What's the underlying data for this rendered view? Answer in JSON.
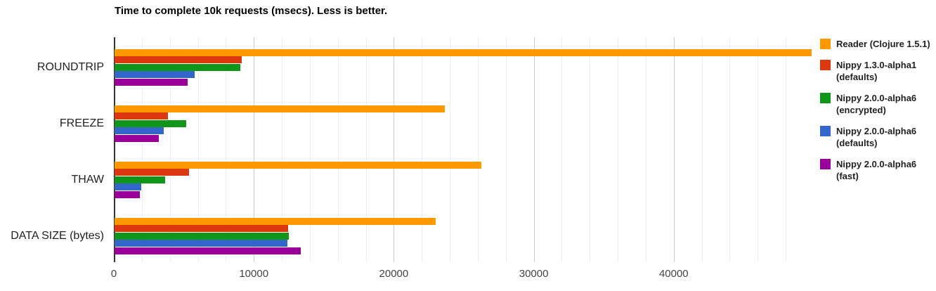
{
  "page": {
    "background": "#ffffff"
  },
  "chart_data": {
    "type": "bar",
    "orientation": "horizontal",
    "title": "Time to complete 10k requests (msecs). Less is better.",
    "categories": [
      "ROUNDTRIP",
      "FREEZE",
      "THAW",
      "DATA SIZE (bytes)"
    ],
    "series": [
      {
        "name": "Reader (Clojure 1.5.1)",
        "color": "#FF9900",
        "values": [
          49800,
          23600,
          26200,
          22950
        ]
      },
      {
        "name": "Nippy 1.3.0-alpha1 (defaults)",
        "color": "#DC3912",
        "values": [
          9100,
          3800,
          5300,
          12400
        ]
      },
      {
        "name": "Nippy 2.0.0-alpha6 (encrypted)",
        "color": "#109618",
        "values": [
          9000,
          5100,
          3600,
          12450
        ]
      },
      {
        "name": "Nippy 2.0.0-alpha6 (defaults)",
        "color": "#3366CC",
        "values": [
          5700,
          3500,
          1900,
          12350
        ]
      },
      {
        "name": "Nippy 2.0.0-alpha6 (fast)",
        "color": "#990099",
        "values": [
          5200,
          3150,
          1800,
          13300
        ]
      }
    ],
    "xlim": [
      0,
      50000
    ],
    "x_tick_values": [
      0,
      10000,
      20000,
      30000,
      40000
    ],
    "x_tick_labels": [
      "0",
      "10000",
      "20000",
      "30000",
      "40000"
    ],
    "minor_grid_step": 2000,
    "grid": true,
    "legend_position": "right",
    "grid_colors": {
      "minor": "#ededed",
      "major": "#cccccc",
      "baseline": "#333333"
    }
  },
  "legend": {
    "entries": [
      {
        "label_lines": [
          "Reader (Clojure 1.5.1)"
        ],
        "color": "#FF9900"
      },
      {
        "label_lines": [
          "Nippy 1.3.0-alpha1",
          "(defaults)"
        ],
        "color": "#DC3912"
      },
      {
        "label_lines": [
          "Nippy 2.0.0-alpha6",
          "(encrypted)"
        ],
        "color": "#109618"
      },
      {
        "label_lines": [
          "Nippy 2.0.0-alpha6",
          "(defaults)"
        ],
        "color": "#3366CC"
      },
      {
        "label_lines": [
          "Nippy 2.0.0-alpha6 (fast)"
        ],
        "color": "#990099"
      }
    ]
  }
}
